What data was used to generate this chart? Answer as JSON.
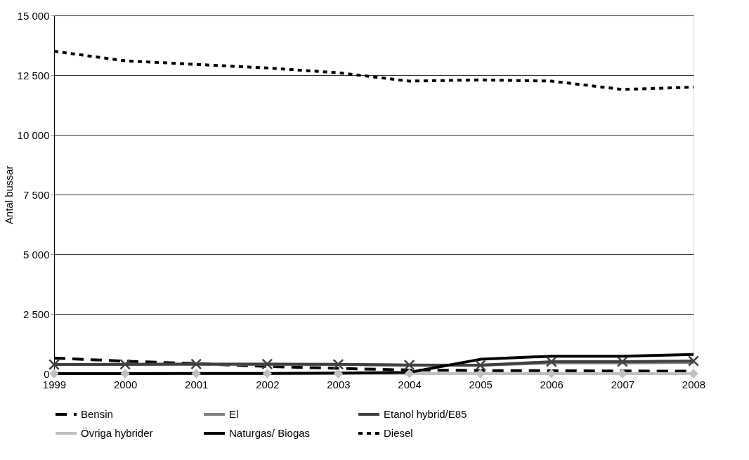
{
  "chart_data": {
    "type": "line",
    "ylabel": "Antal bussar",
    "categories": [
      "1999",
      "2000",
      "2001",
      "2002",
      "2003",
      "2004",
      "2005",
      "2006",
      "2007",
      "2008"
    ],
    "ylim": [
      0,
      15000
    ],
    "yticks": [
      0,
      {
        "value": 2500,
        "label": "2 500"
      },
      {
        "value": 5000,
        "label": "5 000"
      },
      {
        "value": 7500,
        "label": "7 500"
      },
      {
        "value": 10000,
        "label": "10 000"
      },
      {
        "value": 12500,
        "label": "12 500"
      },
      {
        "value": 15000,
        "label": "15 000"
      }
    ],
    "grid": "y",
    "legend": "bottom",
    "series": [
      {
        "name": "Bensin",
        "color": "#000000",
        "line_style": "dashed",
        "marker": "none",
        "values": [
          650,
          520,
          420,
          300,
          220,
          150,
          130,
          120,
          110,
          100
        ]
      },
      {
        "name": "El",
        "color": "#808080",
        "line_style": "solid",
        "marker": "none",
        "values": [
          380,
          380,
          390,
          390,
          380,
          350,
          350,
          450,
          450,
          470
        ]
      },
      {
        "name": "Etanol hybrid/E85",
        "color": "#404040",
        "line_style": "solid",
        "marker": "cross",
        "values": [
          380,
          390,
          400,
          400,
          390,
          360,
          350,
          500,
          500,
          530
        ]
      },
      {
        "name": "Övriga  hybrider",
        "color": "#c0c0c0",
        "line_style": "solid",
        "marker": "diamond",
        "values": [
          0,
          0,
          0,
          0,
          0,
          0,
          0,
          0,
          0,
          0
        ]
      },
      {
        "name": "Naturgas/ Biogas",
        "color": "#000000",
        "line_style": "solid",
        "marker": "none",
        "values": [
          0,
          0,
          10,
          10,
          20,
          50,
          600,
          730,
          730,
          800
        ]
      },
      {
        "name": "Diesel",
        "color": "#000000",
        "line_style": "dotted",
        "marker": "none",
        "values": [
          13500,
          13100,
          12950,
          12800,
          12600,
          12250,
          12300,
          12250,
          11900,
          12000
        ]
      }
    ]
  }
}
